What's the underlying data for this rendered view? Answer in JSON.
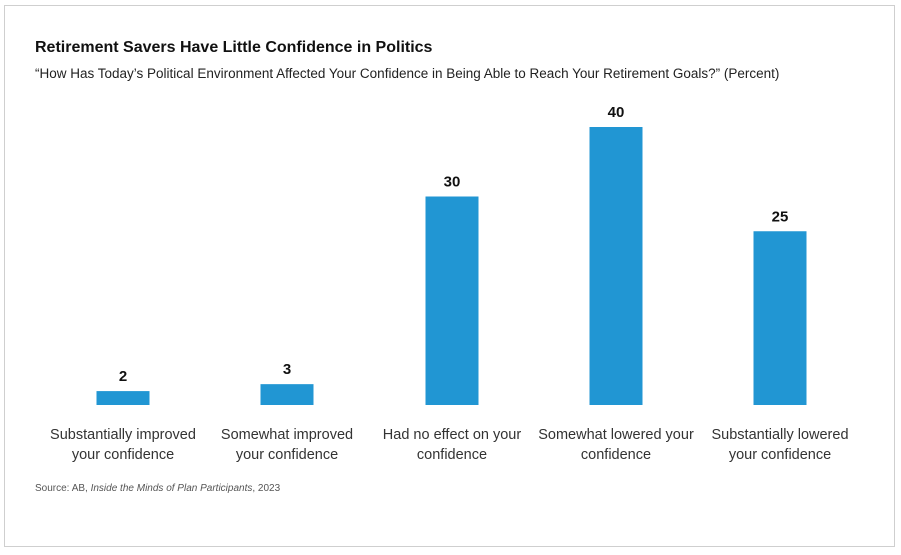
{
  "title": "Retirement Savers Have Little Confidence in Politics",
  "subtitle": "“How Has Today’s Political Environment Affected Your Confidence in Being Able to Reach Your Retirement Goals?” (Percent)",
  "source": {
    "prefix": "Source: AB, ",
    "italic": "Inside the Minds of Plan Participants",
    "suffix": ", 2023"
  },
  "colors": {
    "bar": "#2196d3"
  },
  "chart_data": {
    "type": "bar",
    "title": "Retirement Savers Have Little Confidence in Politics",
    "subtitle": "“How Has Today’s Political Environment Affected Your Confidence in Being Able to Reach Your Retirement Goals?” (Percent)",
    "categories": [
      "Substantially improved your confidence",
      "Somewhat improved your confidence",
      "Had no effect on your confidence",
      "Somewhat lowered your confidence",
      "Substantially lowered your confidence"
    ],
    "category_lines": [
      [
        "Substantially improved",
        "your confidence"
      ],
      [
        "Somewhat improved",
        "your confidence"
      ],
      [
        "Had no effect on your",
        "confidence"
      ],
      [
        "Somewhat lowered your",
        "confidence"
      ],
      [
        "Substantially lowered",
        "your confidence"
      ]
    ],
    "values": [
      2,
      3,
      30,
      40,
      25
    ],
    "xlabel": "",
    "ylabel": "",
    "ylim": [
      0,
      40
    ],
    "grid": false,
    "data_labels": true
  }
}
